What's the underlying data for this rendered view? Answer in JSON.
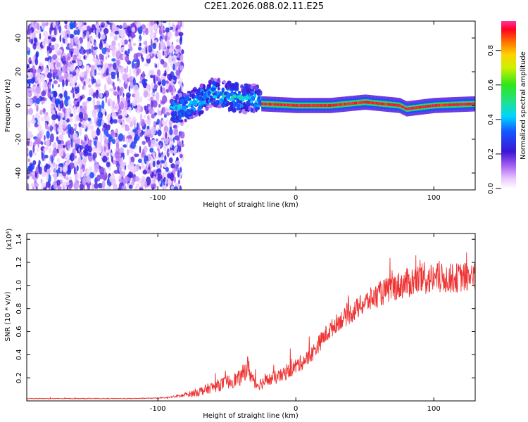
{
  "title": "C2E1.2026.088.02.11.E25",
  "chart_data": [
    {
      "type": "heatmap",
      "xlabel": "Height of straight line (km)",
      "ylabel": "Frequency (Hz)",
      "xlim": [
        -195,
        130
      ],
      "ylim": [
        -50,
        50
      ],
      "xticks": [
        -100,
        0,
        100
      ],
      "xtick_labels": [
        "-100",
        "0",
        "100"
      ],
      "yticks": [
        -40,
        -20,
        0,
        20,
        40
      ],
      "ytick_labels": [
        "-40",
        "-20",
        "0",
        "20",
        "40"
      ],
      "colorbar": {
        "label": "Normalized spectral amplitude",
        "range": [
          0,
          0.97
        ],
        "ticks": [
          0.0,
          0.2,
          0.4,
          0.6,
          0.8
        ],
        "tick_labels": [
          "0.0",
          "0.2",
          "0.4",
          "0.6",
          "0.8"
        ]
      },
      "features": [
        {
          "name": "noise",
          "x_range": [
            -195,
            -90
          ],
          "y_range": [
            -50,
            50
          ],
          "amplitude": 0.15
        },
        {
          "name": "onset-scatter",
          "x_range": [
            -90,
            -25
          ],
          "track_hz": [
            [
              -90,
              -3
            ],
            [
              -80,
              -1
            ],
            [
              -70,
              3
            ],
            [
              -60,
              8
            ],
            [
              -50,
              6
            ],
            [
              -40,
              4
            ],
            [
              -30,
              5
            ],
            [
              -25,
              2
            ]
          ],
          "amplitude": 0.3
        },
        {
          "name": "carrier",
          "x_range": [
            -25,
            130
          ],
          "track_hz": [
            [
              -25,
              1
            ],
            [
              0,
              0
            ],
            [
              25,
              0
            ],
            [
              50,
              2
            ],
            [
              75,
              0
            ],
            [
              80,
              -2
            ],
            [
              100,
              0
            ],
            [
              130,
              1
            ]
          ],
          "amplitude": 0.9
        }
      ]
    },
    {
      "type": "line",
      "xlabel": "Height of straight line (km)",
      "ylabel": "SNR (10 * v/v)",
      "scale_label": "(x10⁴)",
      "xlim": [
        -195,
        130
      ],
      "ylim": [
        0,
        1.45
      ],
      "xticks": [
        -100,
        0,
        100
      ],
      "xtick_labels": [
        "-100",
        "0",
        "100"
      ],
      "yticks": [
        0.2,
        0.4,
        0.6,
        0.8,
        1.0,
        1.2,
        1.4
      ],
      "ytick_labels": [
        "0.2",
        "0.4",
        "0.6",
        "0.8",
        "1.0",
        "1.2",
        "1.4"
      ],
      "series": [
        {
          "name": "SNR",
          "color": "#ee3333",
          "x": [
            -195,
            -120,
            -95,
            -80,
            -70,
            -60,
            -50,
            -40,
            -35,
            -30,
            -28,
            -20,
            -10,
            0,
            10,
            20,
            30,
            40,
            50,
            60,
            70,
            80,
            90,
            100,
            110,
            120,
            130
          ],
          "values": [
            0.02,
            0.02,
            0.025,
            0.05,
            0.08,
            0.12,
            0.16,
            0.2,
            0.3,
            0.15,
            0.14,
            0.18,
            0.22,
            0.3,
            0.38,
            0.55,
            0.68,
            0.76,
            0.85,
            0.92,
            0.98,
            1.02,
            1.05,
            1.06,
            1.06,
            1.07,
            1.08
          ],
          "noise": [
            0.003,
            0.003,
            0.003,
            0.02,
            0.04,
            0.05,
            0.06,
            0.07,
            0.1,
            0.06,
            0.05,
            0.06,
            0.06,
            0.07,
            0.07,
            0.08,
            0.08,
            0.09,
            0.1,
            0.11,
            0.12,
            0.13,
            0.14,
            0.14,
            0.13,
            0.13,
            0.13
          ]
        }
      ]
    }
  ],
  "colors": {
    "snr_line": "#ee3333",
    "axis": "#000000"
  }
}
